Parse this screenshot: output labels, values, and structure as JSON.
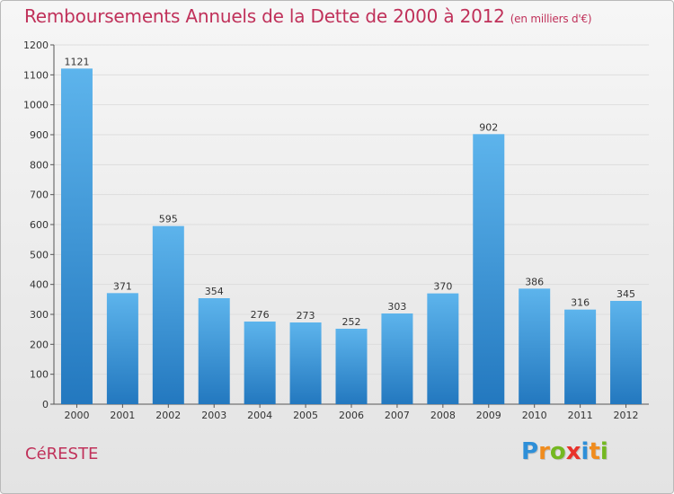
{
  "title": "Remboursements Annuels de la Dette de 2000 à 2012",
  "subtitle": "(en milliers d'€)",
  "commune": "CéRESTE",
  "logo": {
    "letters": [
      {
        "ch": "P",
        "color": "#2e8fd8"
      },
      {
        "ch": "r",
        "color": "#f08c1e"
      },
      {
        "ch": "o",
        "color": "#74b821"
      },
      {
        "ch": "x",
        "color": "#e8322b"
      },
      {
        "ch": "i",
        "color": "#2e8fd8"
      },
      {
        "ch": "t",
        "color": "#f08c1e"
      },
      {
        "ch": "i",
        "color": "#74b821"
      }
    ]
  },
  "colors": {
    "bar_light": "#5db4ec",
    "bar_dark": "#2378bf",
    "accent": "#c0315a"
  },
  "chart_data": {
    "type": "bar",
    "categories": [
      "2000",
      "2001",
      "2002",
      "2003",
      "2004",
      "2005",
      "2006",
      "2007",
      "2008",
      "2009",
      "2010",
      "2011",
      "2012"
    ],
    "values": [
      1121,
      371,
      595,
      354,
      276,
      273,
      252,
      303,
      370,
      902,
      386,
      316,
      345
    ],
    "ylim": [
      0,
      1200
    ],
    "yticks": [
      0,
      100,
      200,
      300,
      400,
      500,
      600,
      700,
      800,
      900,
      1000,
      1100,
      1200
    ],
    "grid": true
  }
}
